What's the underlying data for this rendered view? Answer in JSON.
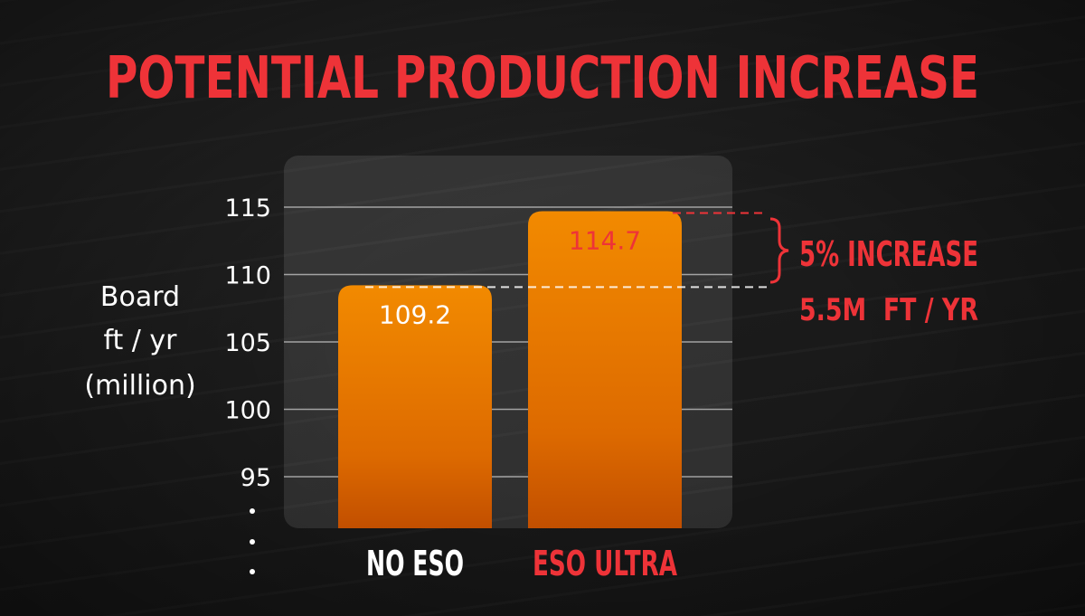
{
  "title": "POTENTIAL PRODUCTION INCREASE",
  "ylabel": [
    "Board",
    "ft / yr",
    "(million)"
  ],
  "colors": {
    "accent": "#ee3338",
    "bar": "#f07a00",
    "text": "#ffffff"
  },
  "annotation": {
    "line1": "5% INCREASE",
    "line2": "5.5M  FT / YR"
  },
  "chart_data": {
    "type": "bar",
    "categories": [
      "NO ESO",
      "ESO ULTRA"
    ],
    "values": [
      109.2,
      114.7
    ],
    "value_labels": [
      "109.2",
      "114.7"
    ],
    "yticks": [
      "115",
      "110",
      "105",
      "100",
      "95"
    ],
    "ylim": [
      90,
      115
    ],
    "axis_break": true,
    "grid": true
  }
}
